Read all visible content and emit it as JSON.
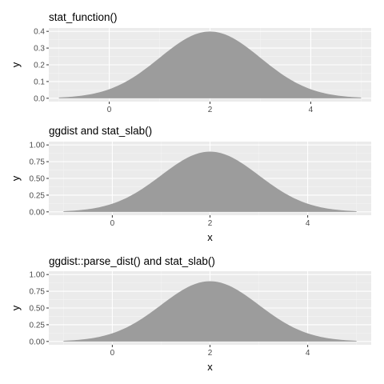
{
  "figure": {
    "background": "#ffffff"
  },
  "style": {
    "panel_bg": "#ebebeb",
    "grid_major": "#ffffff",
    "grid_minor": "#f5f5f5",
    "fill": "#9c9c9c",
    "tick": "#333333"
  },
  "chart_data": [
    {
      "type": "area",
      "title": "stat_function()",
      "xlabel": "",
      "ylabel": "y",
      "x_range": [
        -1.2,
        5.2
      ],
      "ylim": [
        -0.02,
        0.42
      ],
      "x_ticks": [
        0,
        2,
        4
      ],
      "x_tick_labels": [
        "0",
        "2",
        "4"
      ],
      "y_ticks": [
        0.0,
        0.1,
        0.2,
        0.3,
        0.4
      ],
      "y_tick_labels": [
        "0.0",
        "0.1",
        "0.2",
        "0.3",
        "0.4"
      ],
      "grid": true,
      "series": [
        {
          "distribution": "normal",
          "mean": 2,
          "sd": 1,
          "peak": 0.399,
          "x_from": -1,
          "x_to": 5
        }
      ]
    },
    {
      "type": "area",
      "title": "ggdist and stat_slab()",
      "xlabel": "x",
      "ylabel": "y",
      "x_range": [
        -1.3,
        5.3
      ],
      "ylim": [
        -0.05,
        1.05
      ],
      "x_ticks": [
        0,
        2,
        4
      ],
      "x_tick_labels": [
        "0",
        "2",
        "4"
      ],
      "y_ticks": [
        0.0,
        0.25,
        0.5,
        0.75,
        1.0
      ],
      "y_tick_labels": [
        "0.00",
        "0.25",
        "0.50",
        "0.75",
        "1.00"
      ],
      "grid": true,
      "series": [
        {
          "distribution": "normal",
          "mean": 2,
          "sd": 1,
          "peak": 0.9,
          "x_from": -1,
          "x_to": 5
        }
      ]
    },
    {
      "type": "area",
      "title": "ggdist::parse_dist() and stat_slab()",
      "xlabel": "x",
      "ylabel": "y",
      "x_range": [
        -1.3,
        5.3
      ],
      "ylim": [
        -0.05,
        1.05
      ],
      "x_ticks": [
        0,
        2,
        4
      ],
      "x_tick_labels": [
        "0",
        "2",
        "4"
      ],
      "y_ticks": [
        0.0,
        0.25,
        0.5,
        0.75,
        1.0
      ],
      "y_tick_labels": [
        "0.00",
        "0.25",
        "0.50",
        "0.75",
        "1.00"
      ],
      "grid": true,
      "series": [
        {
          "distribution": "normal",
          "mean": 2,
          "sd": 1,
          "peak": 0.9,
          "x_from": -1,
          "x_to": 5
        }
      ]
    }
  ]
}
